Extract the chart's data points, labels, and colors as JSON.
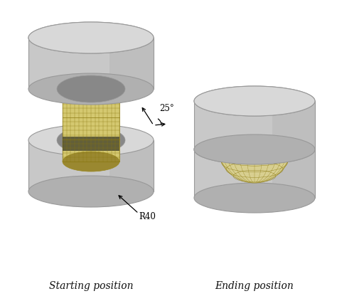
{
  "bg_color": "#ffffff",
  "die_body_color": "#c8c8c8",
  "die_top_color": "#d8d8d8",
  "die_shadow_color": "#b0b0b0",
  "die_edge_color": "#999999",
  "cavity_color": "#aaaaaa",
  "cavity_dark": "#888888",
  "billet_light": "#e8dfa0",
  "billet_mid": "#d4c870",
  "billet_dark": "#9a8830",
  "billet_shadow": "#555522",
  "sphere_color": "#d8cf90",
  "sphere_edge": "#9a8820",
  "mesh_color": "#8a7810",
  "mesh_lw": 0.3,
  "text_color": "#111111",
  "label_left": "Starting position",
  "label_right": "Ending position",
  "angle_label": "25°",
  "radius_label": "R40",
  "label_fontsize": 10
}
